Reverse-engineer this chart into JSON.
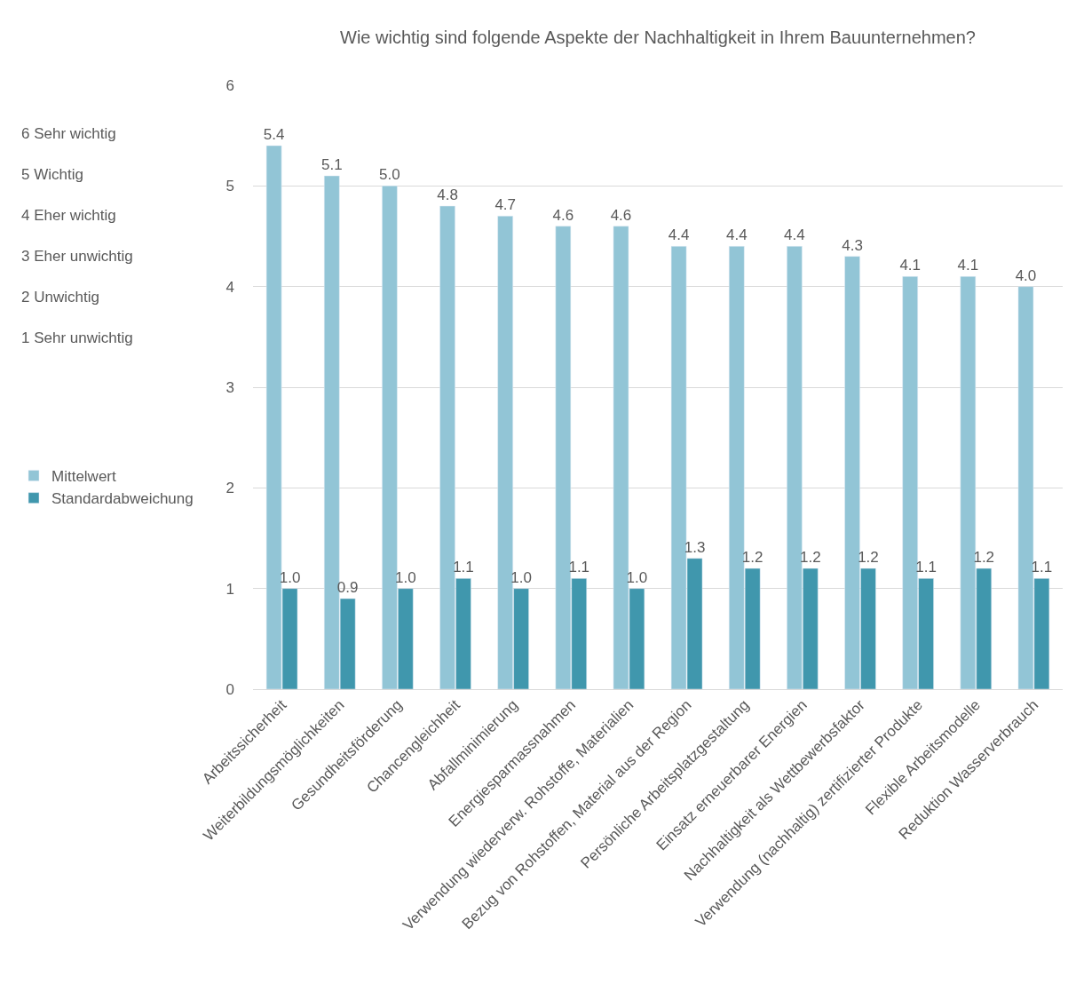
{
  "chart_data": {
    "type": "bar",
    "title": "Wie wichtig sind folgende Aspekte der Nachhaltigkeit in Ihrem Bauunternehmen?",
    "categories": [
      "Arbeitssicherheit",
      "Weiterbildungsmöglichkeiten",
      "Gesundheitsförderung",
      "Chancengleichheit",
      "Abfallminimierung",
      "Energiesparmassnahmen",
      "Verwendung wiederverw. Rohstoffe, Materialien",
      "Bezug von Rohstoffen, Material aus der Region",
      "Persönliche Arbeitsplatzgestaltung",
      "Einsatz erneuerbarer Energien",
      "Nachhaltigkeit als Wettbewerbsfaktor",
      "Verwendung (nachhaltig) zertifizierter Produkte",
      "Flexible Arbeitsmodelle",
      "Reduktion Wasserverbrauch"
    ],
    "series": [
      {
        "name": "Mittelwert",
        "color": "#92c5d6",
        "values": [
          5.4,
          5.1,
          5.0,
          4.8,
          4.7,
          4.6,
          4.6,
          4.4,
          4.4,
          4.4,
          4.3,
          4.1,
          4.1,
          4.0
        ],
        "value_labels": [
          "5.4",
          "5.1",
          "5.0",
          "4.8",
          "4.7",
          "4.6",
          "4.6",
          "4.4",
          "4.4",
          "4.4",
          "4.3",
          "4.1",
          "4.1",
          "4.0"
        ]
      },
      {
        "name": "Standardabweichung",
        "color": "#4097ad",
        "values": [
          1.0,
          0.9,
          1.0,
          1.1,
          1.0,
          1.1,
          1.0,
          1.3,
          1.2,
          1.2,
          1.2,
          1.1,
          1.2,
          1.1
        ],
        "value_labels": [
          "1.0",
          "0.9",
          "1.0",
          "1.1",
          "1.0",
          "1.1",
          "1.0",
          "1.3",
          "1.2",
          "1.2",
          "1.2",
          "1.1",
          "1.2",
          "1.1"
        ]
      }
    ],
    "ylim": [
      0,
      6
    ],
    "yticks": [
      0,
      1,
      2,
      3,
      4,
      5,
      6
    ],
    "grid": "y",
    "legend": "left",
    "annotations": [
      "6 Sehr wichtig",
      "5 Wichtig",
      "4 Eher wichtig",
      "3 Eher unwichtig",
      "2 Unwichtig",
      "1 Sehr unwichtig"
    ]
  }
}
